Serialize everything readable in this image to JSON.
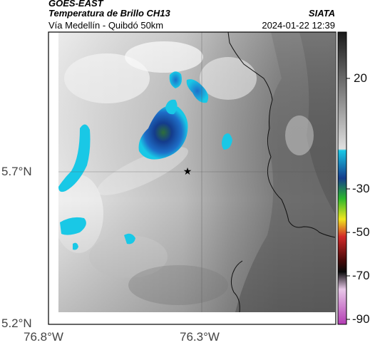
{
  "header": {
    "satellite": "GOES-EAST",
    "product": "Temperatura de Brillo CH13",
    "region": "Vía Medellín - Quibdó 50km",
    "agency": "SIATA",
    "datetime": "2024-01-22 12:39"
  },
  "axes": {
    "lat_ticks": [
      "5.7°N",
      "5.2°N"
    ],
    "lon_ticks": [
      "76.8°W",
      "76.3°W"
    ]
  },
  "colorbar": {
    "ticks": [
      "20",
      "-30",
      "-50",
      "-70",
      "-90"
    ],
    "colors": {
      "warm_gray": "#3a3a3a",
      "cold_cyan": "#19c8e6",
      "blue": "#143c8c",
      "green": "#2db82d",
      "yellow": "#f0e61e",
      "red": "#d22828",
      "black": "#0a0a0a",
      "magenta": "#b43cb4"
    }
  },
  "map": {
    "marker": "star",
    "layers": [
      "brightness-temperature-imagery",
      "coastline-border",
      "graticule"
    ]
  }
}
